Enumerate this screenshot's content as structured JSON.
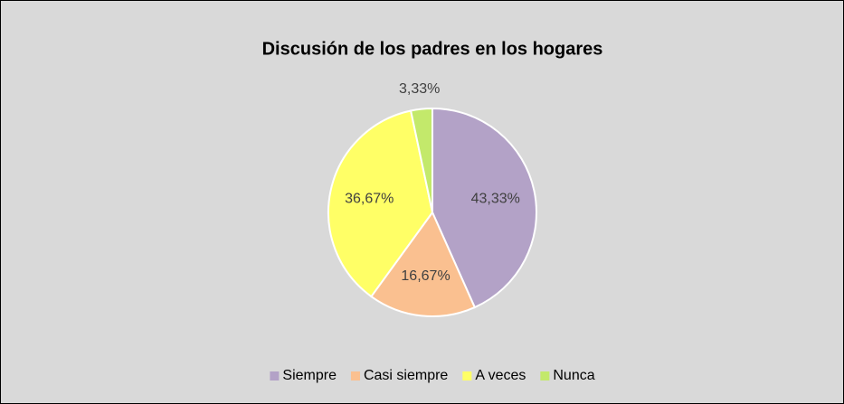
{
  "chart_data": {
    "type": "pie",
    "title": "Discusión de los padres en los hogares",
    "categories": [
      "Siempre",
      "Casi siempre",
      "A veces",
      "Nunca"
    ],
    "values": [
      43.33,
      16.67,
      36.67,
      3.33
    ],
    "value_labels": [
      "43,33%",
      "16,67%",
      "36,67%",
      "3,33%"
    ],
    "colors": [
      "#b3a2c7",
      "#fac090",
      "#ffff66",
      "#c3e96b"
    ],
    "legend": "bottom"
  }
}
